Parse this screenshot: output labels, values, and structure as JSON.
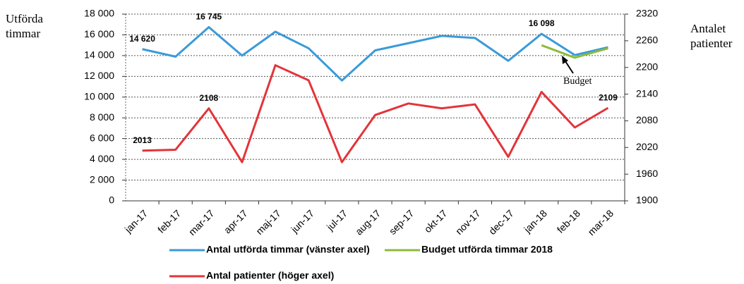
{
  "chart_data": {
    "type": "line",
    "y_label": "Utförda timmar",
    "y2_label": "Antalet patienter",
    "categories": [
      "jan-17",
      "feb-17",
      "mar-17",
      "apr-17",
      "maj-17",
      "jun-17",
      "jul-17",
      "aug-17",
      "sep-17",
      "okt-17",
      "nov-17",
      "dec-17",
      "jan-18",
      "feb-18",
      "mar-18"
    ],
    "series": [
      {
        "name": "Antal utförda timmar (vänster axel)",
        "color": "#3a9ad9",
        "values": [
          14620,
          13900,
          16745,
          14000,
          16300,
          14700,
          11600,
          14500,
          15200,
          15900,
          15700,
          13500,
          16098,
          14050,
          14800
        ],
        "value_labels": [
          "14 620",
          null,
          "16 745",
          null,
          null,
          null,
          null,
          null,
          null,
          null,
          null,
          null,
          "16 098",
          null,
          null
        ]
      },
      {
        "name": "Budget utförda timmar 2018",
        "color": "#8dbb3c",
        "values": [
          null,
          null,
          null,
          null,
          null,
          null,
          null,
          null,
          null,
          null,
          null,
          null,
          15000,
          13800,
          14700
        ]
      },
      {
        "name": "Antal patienter (höger axel)",
        "color": "#e2343a",
        "axis": "y2",
        "values": [
          2013,
          2015,
          2108,
          1987,
          2205,
          2171,
          1987,
          2093,
          2119,
          2108,
          2117,
          1999,
          2145,
          2065,
          2109
        ],
        "value_labels": [
          "2013",
          null,
          "2108",
          null,
          null,
          null,
          null,
          null,
          null,
          null,
          null,
          null,
          null,
          null,
          "2109"
        ]
      }
    ],
    "ylim": [
      0,
      18000
    ],
    "yticks": [
      0,
      {
        "value": 2000,
        "label": "2 000"
      },
      {
        "value": 4000,
        "label": "4 000"
      },
      {
        "value": 6000,
        "label": "6 000"
      },
      {
        "value": 8000,
        "label": "8 000"
      },
      {
        "value": 10000,
        "label": "10 000"
      },
      {
        "value": 12000,
        "label": "12 000"
      },
      {
        "value": 14000,
        "label": "14 000"
      },
      {
        "value": 16000,
        "label": "16 000"
      },
      {
        "value": 18000,
        "label": "18 000"
      }
    ],
    "y2lim": [
      1900,
      2320
    ],
    "y2ticks": [
      1900,
      1960,
      2020,
      2080,
      2140,
      2200,
      2260,
      2320
    ],
    "grid": true,
    "annotation": "Budget"
  }
}
